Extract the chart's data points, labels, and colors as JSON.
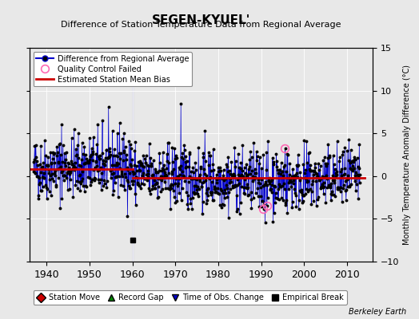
{
  "title": "SEGEN-KYUEL'",
  "subtitle": "Difference of Station Temperature Data from Regional Average",
  "ylabel": "Monthly Temperature Anomaly Difference (°C)",
  "xlim": [
    1936,
    2016
  ],
  "ylim": [
    -10,
    15
  ],
  "yticks": [
    -10,
    -5,
    0,
    5,
    10,
    15
  ],
  "xticks": [
    1940,
    1950,
    1960,
    1970,
    1980,
    1990,
    2000,
    2010
  ],
  "bg_color": "#e8e8e8",
  "plot_bg_color": "#e8e8e8",
  "line_color": "#0000cc",
  "bias_color": "#cc0000",
  "empirical_break_x": 1960,
  "empirical_break_y": -7.5,
  "vertical_line_x": 1960,
  "bias_segments": [
    {
      "x": [
        1936,
        1960
      ],
      "y": [
        0.8,
        0.8
      ]
    },
    {
      "x": [
        1960,
        2014
      ],
      "y": [
        -0.2,
        -0.2
      ]
    }
  ],
  "seed": 42,
  "years_start": 1937,
  "years_end": 2013,
  "noise_std": 1.8,
  "spike_1971": [
    1971.3,
    8.5
  ],
  "spike_1943": [
    1943.5,
    6.0
  ],
  "spike_1953": [
    1953.0,
    6.5
  ],
  "spike_1957": [
    1957.0,
    6.2
  ],
  "qc_points": [
    [
      1990.5,
      -3.8
    ],
    [
      1991.3,
      -3.5
    ],
    [
      1995.5,
      3.2
    ]
  ],
  "berkeley_earth_text": "Berkeley Earth"
}
